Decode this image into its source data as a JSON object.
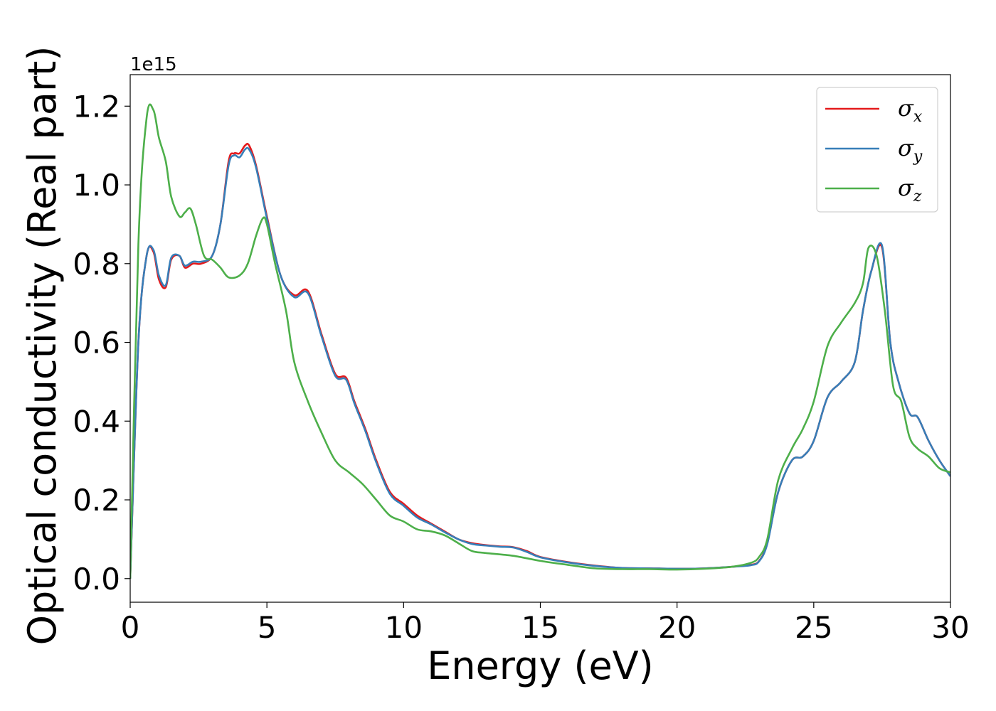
{
  "chart_data": {
    "type": "line",
    "title": "",
    "xlabel": "Energy (eV)",
    "ylabel": "Optical conductivity (Real part)",
    "y_offset_text": "1e15",
    "xlim": [
      0,
      30
    ],
    "ylim": [
      -0.06,
      1.28
    ],
    "x_ticks": [
      0,
      5,
      10,
      15,
      20,
      25,
      30
    ],
    "x_tick_labels": [
      "0",
      "5",
      "10",
      "15",
      "20",
      "25",
      "30"
    ],
    "y_ticks": [
      0.0,
      0.2,
      0.4,
      0.6,
      0.8,
      1.0,
      1.2
    ],
    "y_tick_labels": [
      "0.0",
      "0.2",
      "0.4",
      "0.6",
      "0.8",
      "1.0",
      "1.2"
    ],
    "grid": false,
    "legend_position": "top-right",
    "series": [
      {
        "name": "σx",
        "legend_symbol": "σ",
        "legend_subscript": "x",
        "color": "#e41a1c",
        "x": [
          0,
          0.3,
          0.6,
          0.85,
          1.05,
          1.3,
          1.5,
          1.8,
          2.0,
          2.3,
          2.6,
          3.0,
          3.3,
          3.6,
          3.8,
          4.0,
          4.2,
          4.35,
          4.6,
          5.0,
          5.5,
          6.0,
          6.5,
          7.0,
          7.5,
          7.9,
          8.2,
          8.6,
          9.0,
          9.5,
          10.0,
          10.5,
          11.0,
          11.5,
          12.0,
          12.5,
          13.0,
          13.5,
          14.0,
          14.5,
          15.0,
          16.0,
          17.0,
          18.0,
          19.0,
          20.0,
          21.0,
          22.0,
          22.7,
          23.0,
          23.3,
          23.7,
          24.2,
          24.6,
          25.0,
          25.5,
          26.0,
          26.5,
          26.8,
          27.1,
          27.5,
          27.8,
          28.1,
          28.5,
          28.8,
          29.2,
          29.6,
          30.0
        ],
        "y": [
          0.0,
          0.6,
          0.82,
          0.83,
          0.76,
          0.74,
          0.81,
          0.82,
          0.79,
          0.8,
          0.8,
          0.82,
          0.9,
          1.06,
          1.08,
          1.08,
          1.1,
          1.1,
          1.05,
          0.92,
          0.77,
          0.72,
          0.73,
          0.62,
          0.52,
          0.51,
          0.45,
          0.38,
          0.3,
          0.22,
          0.19,
          0.16,
          0.14,
          0.12,
          0.1,
          0.09,
          0.085,
          0.082,
          0.08,
          0.07,
          0.055,
          0.042,
          0.033,
          0.027,
          0.026,
          0.025,
          0.026,
          0.03,
          0.035,
          0.045,
          0.09,
          0.22,
          0.3,
          0.31,
          0.35,
          0.46,
          0.5,
          0.55,
          0.68,
          0.78,
          0.84,
          0.6,
          0.5,
          0.42,
          0.41,
          0.35,
          0.3,
          0.26
        ]
      },
      {
        "name": "σy",
        "legend_symbol": "σ",
        "legend_subscript": "y",
        "color": "#377eb8",
        "x": [
          0,
          0.3,
          0.6,
          0.85,
          1.05,
          1.3,
          1.5,
          1.8,
          2.0,
          2.3,
          2.6,
          3.0,
          3.3,
          3.6,
          3.8,
          4.0,
          4.2,
          4.35,
          4.6,
          5.0,
          5.5,
          6.0,
          6.5,
          7.0,
          7.5,
          7.9,
          8.2,
          8.6,
          9.0,
          9.5,
          10.0,
          10.5,
          11.0,
          11.5,
          12.0,
          12.5,
          13.0,
          13.5,
          14.0,
          14.5,
          15.0,
          16.0,
          17.0,
          18.0,
          19.0,
          20.0,
          21.0,
          22.0,
          22.7,
          23.0,
          23.3,
          23.7,
          24.2,
          24.6,
          25.0,
          25.5,
          26.0,
          26.5,
          26.8,
          27.1,
          27.5,
          27.8,
          28.1,
          28.5,
          28.8,
          29.2,
          29.6,
          30.0
        ],
        "y": [
          0.0,
          0.6,
          0.82,
          0.835,
          0.77,
          0.745,
          0.815,
          0.82,
          0.795,
          0.805,
          0.805,
          0.82,
          0.9,
          1.05,
          1.075,
          1.07,
          1.09,
          1.09,
          1.045,
          0.915,
          0.77,
          0.715,
          0.725,
          0.615,
          0.515,
          0.505,
          0.445,
          0.375,
          0.295,
          0.215,
          0.185,
          0.155,
          0.138,
          0.118,
          0.1,
          0.088,
          0.084,
          0.081,
          0.079,
          0.068,
          0.054,
          0.041,
          0.032,
          0.027,
          0.026,
          0.025,
          0.026,
          0.03,
          0.034,
          0.044,
          0.088,
          0.22,
          0.3,
          0.31,
          0.35,
          0.46,
          0.5,
          0.55,
          0.68,
          0.78,
          0.845,
          0.6,
          0.5,
          0.42,
          0.41,
          0.35,
          0.3,
          0.26
        ]
      },
      {
        "name": "σz",
        "legend_symbol": "σ",
        "legend_subscript": "z",
        "color": "#4daf4a",
        "x": [
          0,
          0.3,
          0.6,
          0.85,
          1.05,
          1.3,
          1.5,
          1.8,
          2.0,
          2.2,
          2.4,
          2.7,
          3.0,
          3.3,
          3.6,
          4.0,
          4.3,
          4.6,
          4.85,
          5.0,
          5.3,
          5.7,
          6.0,
          6.5,
          7.0,
          7.5,
          8.0,
          8.5,
          9.0,
          9.5,
          10.0,
          10.5,
          11.0,
          11.5,
          12.0,
          12.5,
          13.0,
          14.0,
          15.0,
          16.0,
          17.0,
          18.0,
          19.0,
          20.0,
          21.0,
          22.0,
          22.7,
          23.0,
          23.3,
          23.7,
          24.2,
          24.6,
          25.0,
          25.5,
          26.0,
          26.5,
          26.8,
          27.0,
          27.3,
          27.6,
          27.9,
          28.2,
          28.5,
          28.8,
          29.2,
          29.6,
          30.0
        ],
        "y": [
          0.0,
          0.85,
          1.17,
          1.19,
          1.12,
          1.06,
          0.97,
          0.92,
          0.93,
          0.94,
          0.9,
          0.82,
          0.81,
          0.79,
          0.765,
          0.77,
          0.8,
          0.87,
          0.915,
          0.9,
          0.8,
          0.68,
          0.55,
          0.45,
          0.37,
          0.3,
          0.27,
          0.24,
          0.2,
          0.16,
          0.145,
          0.125,
          0.12,
          0.11,
          0.09,
          0.07,
          0.065,
          0.058,
          0.045,
          0.035,
          0.026,
          0.024,
          0.024,
          0.023,
          0.025,
          0.03,
          0.04,
          0.055,
          0.1,
          0.25,
          0.33,
          0.38,
          0.45,
          0.59,
          0.65,
          0.7,
          0.75,
          0.84,
          0.82,
          0.68,
          0.49,
          0.45,
          0.36,
          0.33,
          0.31,
          0.28,
          0.27
        ]
      }
    ]
  }
}
